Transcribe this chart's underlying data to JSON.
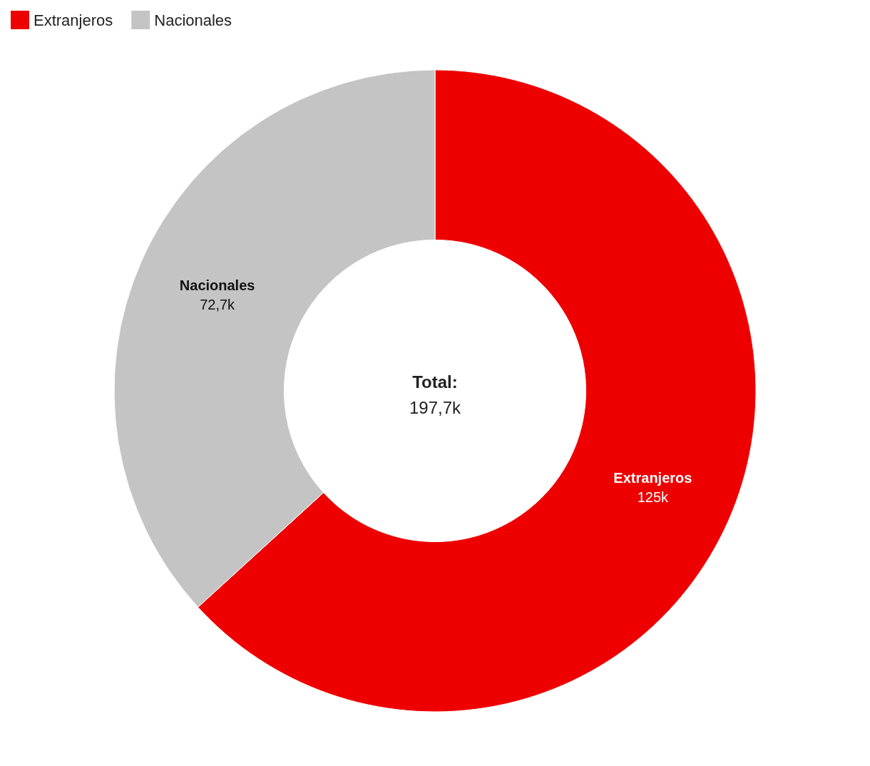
{
  "chart_data": {
    "type": "donut",
    "categories": [
      "Extranjeros",
      "Nacionales"
    ],
    "values": [
      125000,
      72700
    ],
    "value_labels": [
      "125k",
      "72,7k"
    ],
    "colors": [
      "#ee0000",
      "#c4c4c4"
    ],
    "legend": "top left",
    "annotations": [
      "Total:",
      "197,7k"
    ]
  }
}
